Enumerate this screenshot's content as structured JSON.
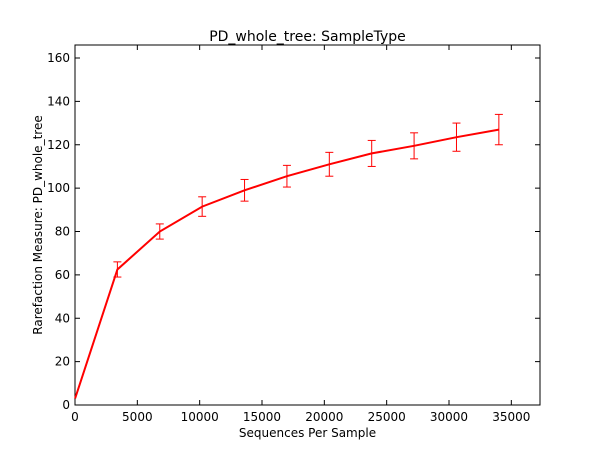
{
  "chart_data": {
    "type": "line",
    "title": "PD_whole_tree: SampleType",
    "xlabel": "Sequences Per Sample",
    "ylabel": "Rarefaction Measure: PD_whole_tree",
    "xlim": [
      0,
      37300
    ],
    "ylim": [
      0,
      166
    ],
    "xticks": [
      0,
      5000,
      10000,
      15000,
      20000,
      25000,
      30000,
      35000
    ],
    "yticks": [
      0,
      20,
      40,
      60,
      80,
      100,
      120,
      140,
      160
    ],
    "grid": false,
    "series": [
      {
        "color": "#ff0000",
        "x": [
          10,
          3400,
          6800,
          10200,
          13600,
          17000,
          20400,
          23800,
          27200,
          30600,
          34000
        ],
        "y": [
          3,
          62.5,
          80,
          91.5,
          99,
          105.5,
          111,
          116,
          119.5,
          123.5,
          127
        ],
        "error": [
          0,
          3.5,
          3.5,
          4.5,
          5,
          5,
          5.5,
          6,
          6,
          6.5,
          7
        ]
      }
    ]
  }
}
